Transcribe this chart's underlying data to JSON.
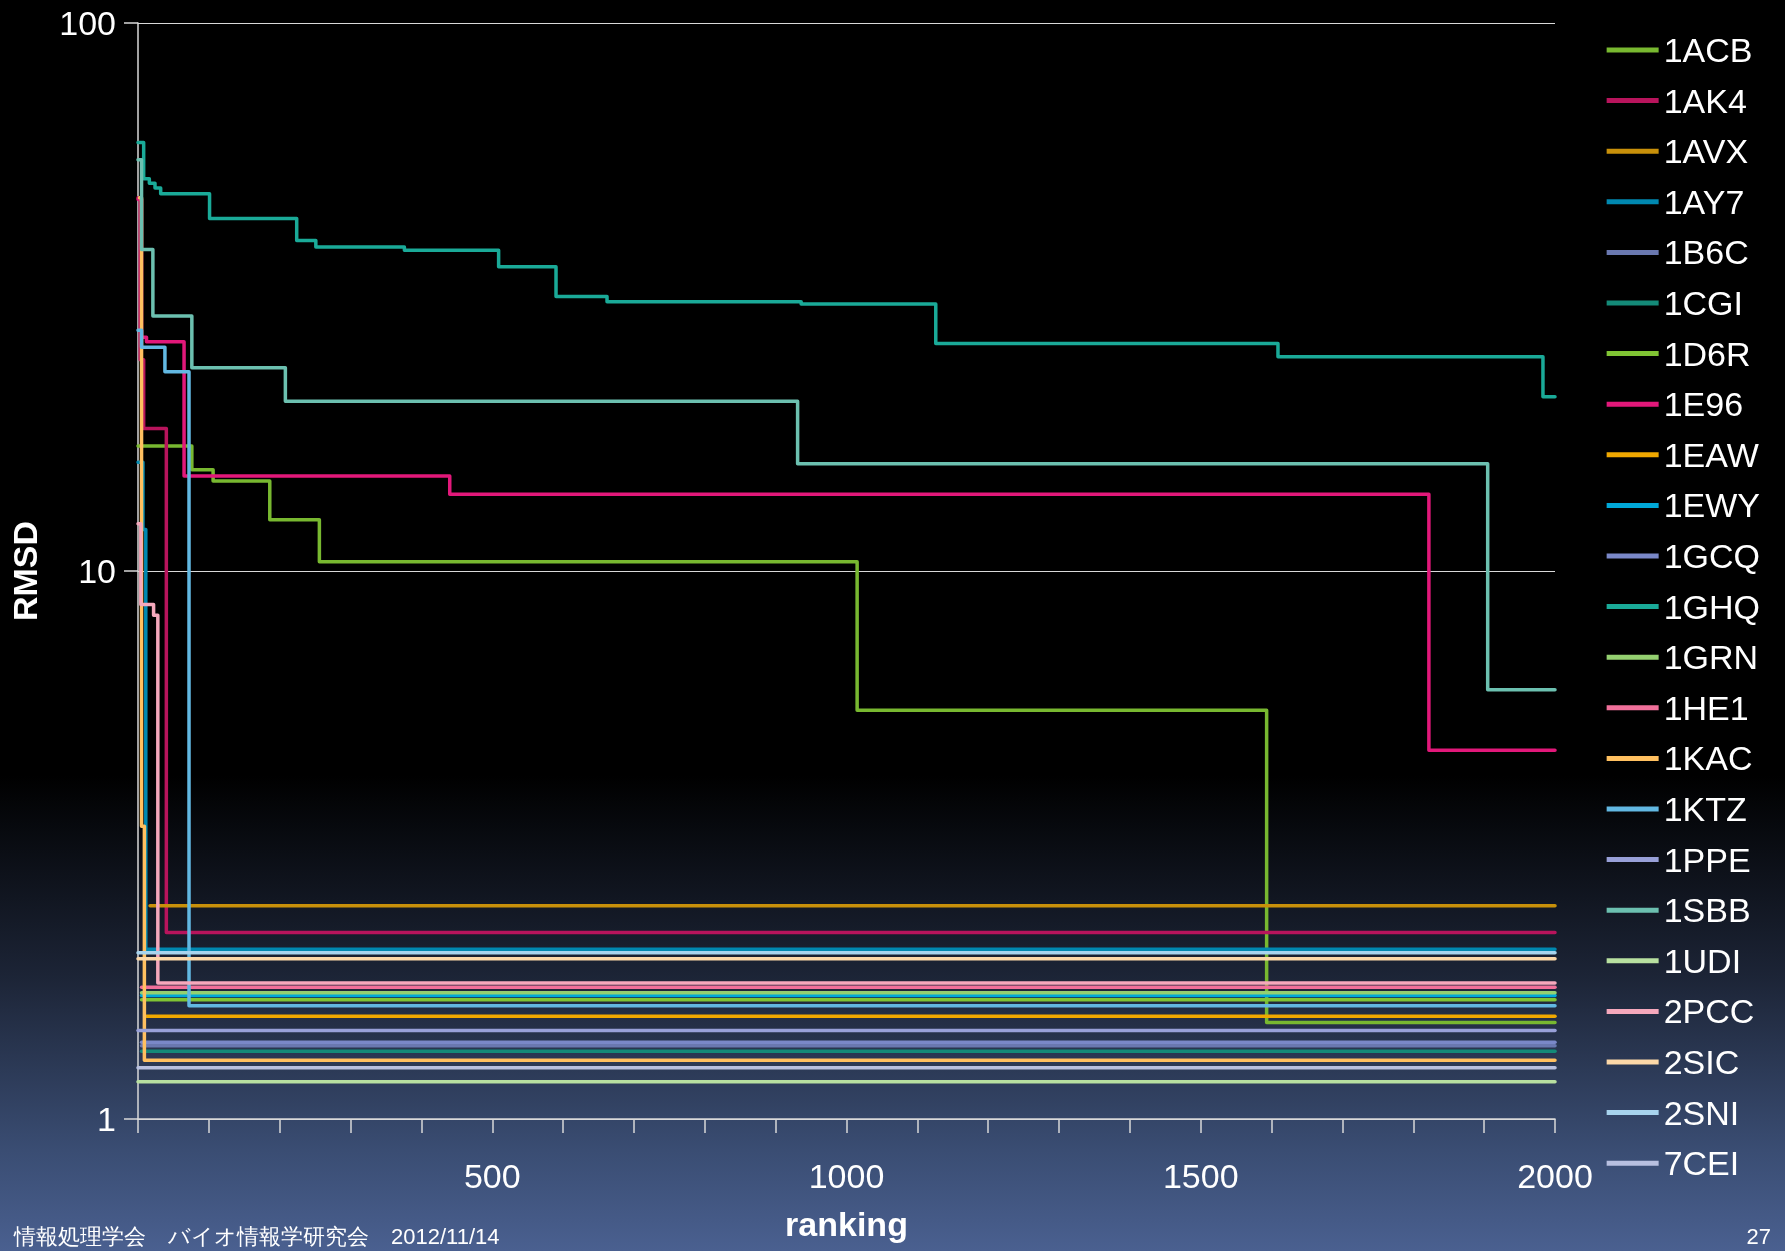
{
  "chart_data": {
    "type": "step",
    "xlabel": "ranking",
    "ylabel": "RMSD",
    "log": "y",
    "grid": "y",
    "legend": "right",
    "marker": "none",
    "xlim": [
      0,
      2000
    ],
    "ylim": [
      1,
      100
    ],
    "yticks": [
      1,
      10,
      100
    ],
    "xticks": [
      {
        "value": 0,
        "label": null
      },
      {
        "value": 100,
        "label": null
      },
      {
        "value": 200,
        "label": null
      },
      {
        "value": 300,
        "label": null
      },
      {
        "value": 400,
        "label": null
      },
      500,
      {
        "value": 600,
        "label": null
      },
      {
        "value": 700,
        "label": null
      },
      {
        "value": 800,
        "label": null
      },
      {
        "value": 900,
        "label": null
      },
      1000,
      {
        "value": 1100,
        "label": null
      },
      {
        "value": 1200,
        "label": null
      },
      {
        "value": 1300,
        "label": null
      },
      {
        "value": 1400,
        "label": null
      },
      1500,
      {
        "value": 1600,
        "label": null
      },
      {
        "value": 1700,
        "label": null
      },
      {
        "value": 1800,
        "label": null
      },
      {
        "value": 1900,
        "label": null
      },
      2000
    ],
    "annotations": [
      "情報処理学会　バイオ情報学研究会　2012/11/14",
      "27"
    ],
    "series": [
      {
        "name": "1ACB",
        "color": "#78b830",
        "x": [
          0,
          76,
          106,
          186,
          256,
          1015,
          1593,
          2000
        ],
        "values": [
          16.9,
          15.3,
          14.6,
          12.4,
          10.4,
          5.57,
          1.5,
          1.5
        ]
      },
      {
        "name": "1AK4",
        "color": "#b8145c",
        "x": [
          0,
          3,
          8,
          40,
          2000
        ],
        "values": [
          48,
          24.3,
          18.2,
          2.19,
          2.19
        ]
      },
      {
        "name": "1AVX",
        "color": "#c8900a",
        "x": [
          17,
          2000
        ],
        "values": [
          2.45,
          2.45
        ]
      },
      {
        "name": "1AY7",
        "color": "#0088b0",
        "x": [
          0,
          7,
          11,
          2000
        ],
        "values": [
          15.8,
          11.9,
          2.04,
          2.04
        ]
      },
      {
        "name": "1B6C",
        "color": "#6a78b0",
        "x": [
          5,
          2000
        ],
        "values": [
          1.36,
          1.36
        ]
      },
      {
        "name": "1CGI",
        "color": "#148a78",
        "x": [
          5,
          2000
        ],
        "values": [
          1.33,
          1.33
        ]
      },
      {
        "name": "1D6R",
        "color": "#80c434",
        "x": [
          5,
          2000
        ],
        "values": [
          1.65,
          1.65
        ]
      },
      {
        "name": "1E96",
        "color": "#e2187a",
        "x": [
          0,
          5,
          12,
          65,
          440,
          1822,
          2000
        ],
        "values": [
          47.7,
          26.7,
          26.2,
          14.9,
          13.8,
          4.71,
          4.71
        ]
      },
      {
        "name": "1EAW",
        "color": "#f0a800",
        "x": [
          12,
          2000
        ],
        "values": [
          1.54,
          1.54
        ]
      },
      {
        "name": "1EWY",
        "color": "#00a8d8",
        "x": [
          5,
          2000
        ],
        "values": [
          1.68,
          1.68
        ]
      },
      {
        "name": "1GCQ",
        "color": "#7a88c8",
        "x": [
          5,
          2000
        ],
        "values": [
          1.38,
          1.38
        ]
      },
      {
        "name": "1GHQ",
        "color": "#1aaa98",
        "x": [
          0,
          8,
          16,
          24,
          32,
          101,
          224,
          251,
          376,
          509,
          590,
          662,
          936,
          1126,
          1609,
          1983,
          2000
        ],
        "values": [
          60.5,
          52,
          51,
          50,
          48.8,
          44,
          40.1,
          39,
          38.5,
          35.9,
          31.7,
          31,
          30.7,
          26,
          24.6,
          20.8,
          20.8
        ]
      },
      {
        "name": "1GRN",
        "color": "#94d070",
        "x": [
          5,
          2000
        ],
        "values": [
          1.7,
          1.7
        ]
      },
      {
        "name": "1HE1",
        "color": "#f0709a",
        "x": [
          5,
          2000
        ],
        "values": [
          1.74,
          1.74
        ]
      },
      {
        "name": "1KAC",
        "color": "#ffc060",
        "x": [
          2,
          5,
          9,
          2000
        ],
        "values": [
          48,
          3.42,
          1.28,
          1.28
        ]
      },
      {
        "name": "1KTZ",
        "color": "#62b8e2",
        "x": [
          0,
          5,
          38,
          72,
          2000
        ],
        "values": [
          27.5,
          25.6,
          23.1,
          1.61,
          1.61
        ]
      },
      {
        "name": "1PPE",
        "color": "#98a0d8",
        "x": [
          0,
          2000
        ],
        "values": [
          1.45,
          1.45
        ]
      },
      {
        "name": "1SBB",
        "color": "#6cc0b0",
        "x": [
          0,
          5,
          21,
          76,
          208,
          931,
          1905,
          2000
        ],
        "values": [
          56.3,
          38.6,
          29.2,
          23.5,
          20.4,
          15.7,
          6.07,
          6.07
        ]
      },
      {
        "name": "1UDI",
        "color": "#b8e0a0",
        "x": [
          0,
          2000
        ],
        "values": [
          1.17,
          1.17
        ]
      },
      {
        "name": "2PCC",
        "color": "#f5a8bc",
        "x": [
          0,
          4,
          22,
          28,
          2000
        ],
        "values": [
          12.2,
          8.69,
          8.3,
          1.77,
          1.77
        ]
      },
      {
        "name": "2SIC",
        "color": "#fcd8a8",
        "x": [
          0,
          2000
        ],
        "values": [
          1.96,
          1.96
        ]
      },
      {
        "name": "2SNI",
        "color": "#a8d4ee",
        "x": [
          0,
          2000
        ],
        "values": [
          2.01,
          2.01
        ]
      },
      {
        "name": "7CEI",
        "color": "#b8c0e0",
        "x": [
          0,
          2000
        ],
        "values": [
          1.24,
          1.24
        ]
      }
    ]
  }
}
